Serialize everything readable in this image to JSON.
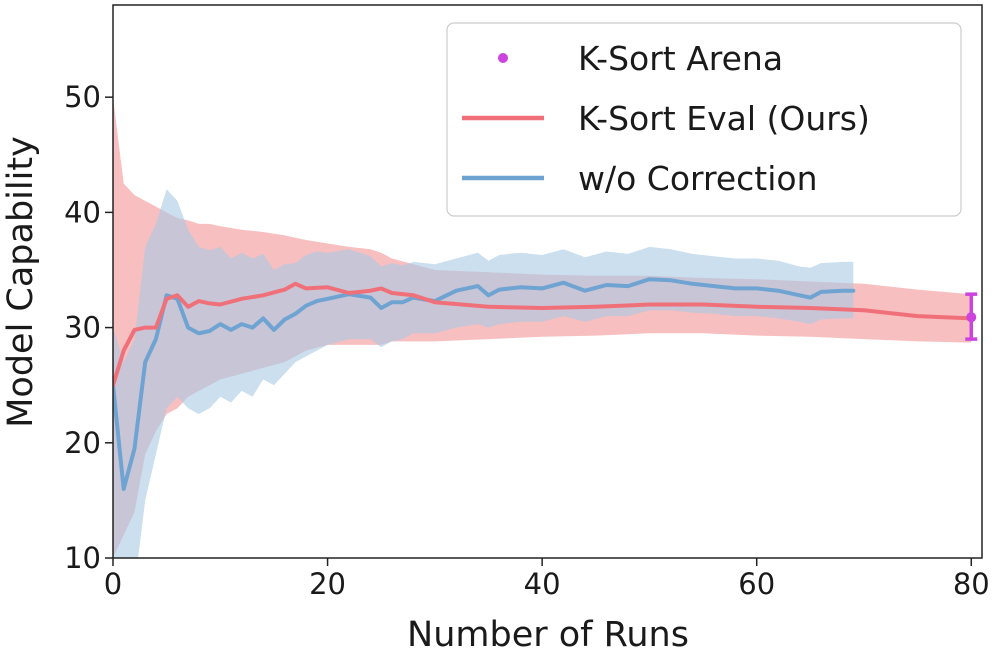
{
  "chart_data": {
    "type": "line",
    "title": "",
    "xlabel": "Number of Runs",
    "ylabel": "Model Capability",
    "xlim": [
      0,
      81
    ],
    "ylim": [
      10,
      58
    ],
    "xticks": [
      0,
      20,
      40,
      60,
      80
    ],
    "yticks": [
      10,
      20,
      30,
      40,
      50
    ],
    "xtick_labels": [
      "0",
      "20",
      "40",
      "60",
      "80"
    ],
    "ytick_labels": [
      "10",
      "20",
      "30",
      "40",
      "50"
    ],
    "legend": {
      "placement": "top-right",
      "entries": [
        "K-Sort Arena",
        "K-Sort Eval (Ours)",
        "w/o Correction"
      ]
    },
    "series": [
      {
        "name": "K-Sort Eval (Ours)",
        "color": "#f0707a",
        "band_color": "#f4a9ab",
        "x": [
          0,
          1,
          2,
          3,
          4,
          5,
          6,
          7,
          8,
          9,
          10,
          12,
          14,
          16,
          17,
          18,
          20,
          22,
          24,
          25,
          26,
          28,
          30,
          35,
          40,
          45,
          50,
          55,
          60,
          65,
          70,
          75,
          80
        ],
        "y": [
          25,
          28,
          29.8,
          30,
          30,
          32.5,
          32.8,
          31.8,
          32.3,
          32.1,
          32,
          32.5,
          32.8,
          33.3,
          33.8,
          33.4,
          33.5,
          33,
          33.2,
          33.4,
          33,
          32.8,
          32.2,
          31.8,
          31.7,
          31.8,
          32,
          32,
          31.8,
          31.7,
          31.5,
          31,
          30.8
        ],
        "lower": [
          10,
          12,
          14,
          19,
          21,
          22.5,
          23,
          24,
          24.5,
          25,
          25.5,
          26,
          26.5,
          27,
          27.5,
          28,
          28.5,
          28.5,
          28.5,
          28.5,
          28.8,
          28.8,
          28.8,
          29,
          29.2,
          29.3,
          29.5,
          29.5,
          29.3,
          29.2,
          29,
          28.8,
          28.7
        ],
        "upper": [
          50,
          42.5,
          41.5,
          41,
          40.5,
          40,
          39.5,
          39.3,
          39,
          39,
          38.8,
          38.5,
          38.3,
          38,
          37.8,
          37.6,
          37.3,
          37,
          36.8,
          36.5,
          36,
          35.5,
          35,
          34.8,
          34.6,
          34.5,
          34.5,
          34.3,
          34.2,
          34,
          33.8,
          33.3,
          32.9
        ]
      },
      {
        "name": "w/o Correction",
        "color": "#6fa3d2",
        "band_color": "#a8c9e5",
        "x": [
          0,
          1,
          2,
          3,
          4,
          5,
          6,
          7,
          8,
          9,
          10,
          11,
          12,
          13,
          14,
          15,
          16,
          17,
          18,
          19,
          20,
          22,
          24,
          25,
          26,
          27,
          28,
          30,
          32,
          34,
          35,
          36,
          38,
          40,
          42,
          44,
          46,
          48,
          50,
          52,
          54,
          56,
          58,
          60,
          62,
          64,
          65,
          66,
          68,
          69
        ],
        "y": [
          25,
          16,
          19.5,
          27,
          29,
          32.8,
          32.5,
          30,
          29.5,
          29.7,
          30.3,
          29.8,
          30.3,
          30,
          30.8,
          29.8,
          30.7,
          31.2,
          31.9,
          32.3,
          32.5,
          32.9,
          32.6,
          31.7,
          32.2,
          32.2,
          32.6,
          32.3,
          33.2,
          33.6,
          32.8,
          33.3,
          33.5,
          33.4,
          33.9,
          33.2,
          33.7,
          33.6,
          34.2,
          34.1,
          33.8,
          33.6,
          33.4,
          33.4,
          33.2,
          32.8,
          32.6,
          33.1,
          33.2,
          33.2
        ],
        "lower": [
          10,
          7,
          7.5,
          15,
          19,
          23,
          24,
          23,
          22.5,
          23,
          24,
          23.5,
          24.5,
          24,
          25.5,
          25,
          26,
          27,
          27.5,
          28,
          28.5,
          29,
          29,
          28.3,
          28.8,
          29,
          29.5,
          29.5,
          30,
          30.3,
          30,
          30.3,
          30.5,
          30.5,
          31,
          30.5,
          31,
          31,
          31.5,
          31.5,
          31.3,
          31.2,
          31,
          31,
          30.8,
          30.5,
          30.3,
          30.7,
          30.8,
          30.8
        ],
        "upper": [
          30,
          27,
          29,
          37,
          39,
          42,
          41,
          38.5,
          37,
          36.7,
          37,
          36,
          36.5,
          36,
          36.4,
          35,
          35.5,
          35.6,
          36.3,
          36.6,
          36.5,
          36.8,
          36.2,
          35.3,
          35.6,
          35.4,
          35.7,
          35.5,
          36,
          36.5,
          35.8,
          36.3,
          36.5,
          36.3,
          36.8,
          36.1,
          36.6,
          36.4,
          37,
          36.8,
          36.4,
          36.2,
          36,
          36,
          35.8,
          35.3,
          35.2,
          35.6,
          35.7,
          35.7
        ]
      }
    ],
    "points": [
      {
        "name": "K-Sort Arena",
        "color": "#cc44dd",
        "x": 80,
        "y": 30.9,
        "err_low": 29,
        "err_high": 32.9
      }
    ]
  }
}
